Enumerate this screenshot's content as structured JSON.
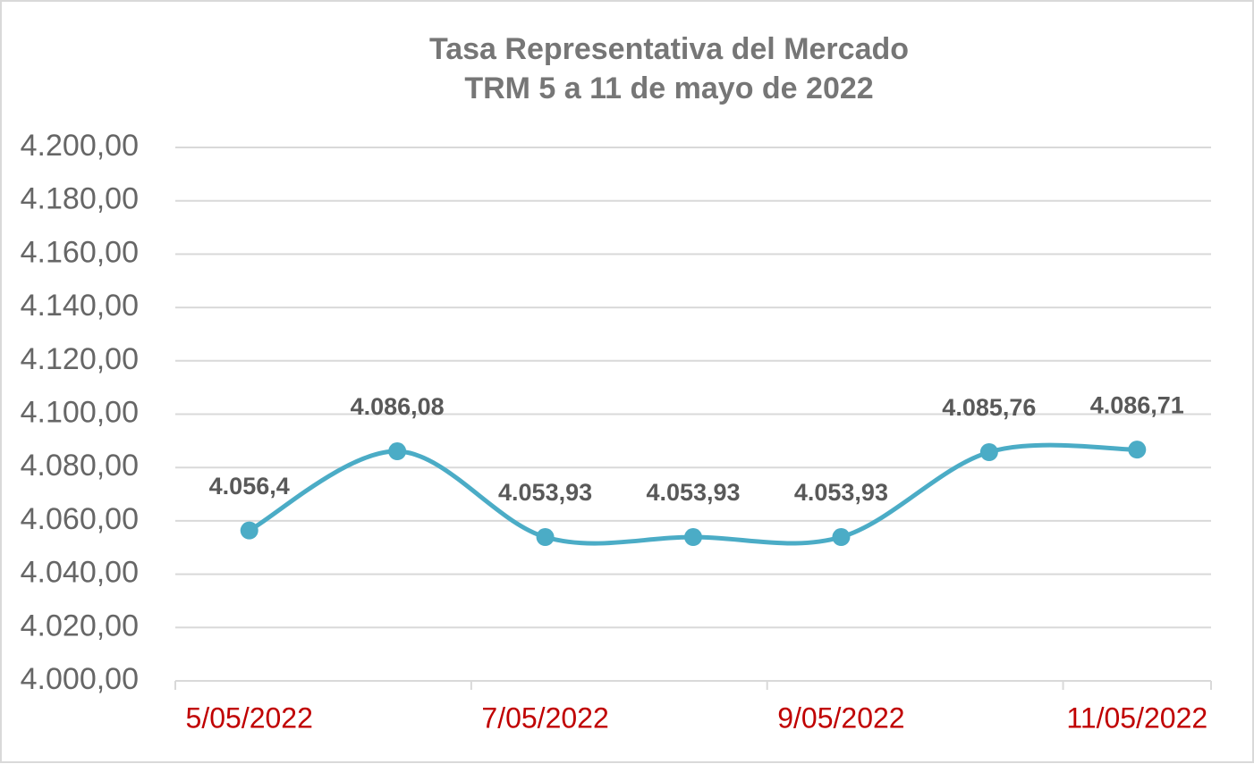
{
  "chart_data": {
    "type": "line",
    "title": "Tasa Representativa del Mercado",
    "subtitle": "TRM  5 a 11 de mayo de 2022",
    "categories": [
      "5/05/2022",
      null,
      "7/05/2022",
      null,
      "9/05/2022",
      null,
      "11/05/2022"
    ],
    "values": [
      4056.4,
      4086.08,
      4053.93,
      4053.93,
      4053.93,
      4085.76,
      4086.71
    ],
    "value_labels": [
      "4.056,4",
      "4.086,08",
      "4.053,93",
      "4.053,93",
      "4.053,93",
      "4.085,76",
      "4.086,71"
    ],
    "color": "#4bacc6",
    "smooth": true,
    "ylim": [
      4000,
      4200
    ],
    "yticks": [
      {
        "value": 4000,
        "label": "4.000,00"
      },
      {
        "value": 4020,
        "label": "4.020,00"
      },
      {
        "value": 4040,
        "label": "4.040,00"
      },
      {
        "value": 4060,
        "label": "4.060,00"
      },
      {
        "value": 4080,
        "label": "4.080,00"
      },
      {
        "value": 4100,
        "label": "4.100,00"
      },
      {
        "value": 4120,
        "label": "4.120,00"
      },
      {
        "value": 4140,
        "label": "4.140,00"
      },
      {
        "value": 4160,
        "label": "4.160,00"
      },
      {
        "value": 4180,
        "label": "4.180,00"
      },
      {
        "value": 4200,
        "label": "4.200,00"
      }
    ],
    "grid": true
  }
}
